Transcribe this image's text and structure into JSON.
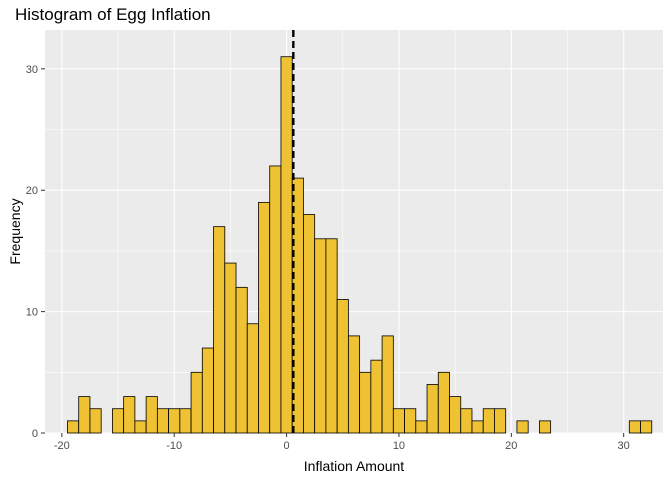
{
  "chart_data": {
    "type": "bar",
    "title": "Histogram of Egg Inflation",
    "xlabel": "Inflation Amount",
    "ylabel": "Frequency",
    "xlim": [
      -21.5,
      33.5
    ],
    "ylim": [
      0,
      33.2
    ],
    "xticks": [
      -20,
      -10,
      0,
      10,
      20,
      30
    ],
    "yticks": [
      0,
      10,
      20,
      30
    ],
    "bin_width": 1,
    "bins": [
      {
        "x": -19,
        "count": 1
      },
      {
        "x": -18,
        "count": 3
      },
      {
        "x": -17,
        "count": 2
      },
      {
        "x": -16,
        "count": 0
      },
      {
        "x": -15,
        "count": 2
      },
      {
        "x": -14,
        "count": 3
      },
      {
        "x": -13,
        "count": 1
      },
      {
        "x": -12,
        "count": 3
      },
      {
        "x": -11,
        "count": 2
      },
      {
        "x": -10,
        "count": 2
      },
      {
        "x": -9,
        "count": 2
      },
      {
        "x": -8,
        "count": 5
      },
      {
        "x": -7,
        "count": 7
      },
      {
        "x": -6,
        "count": 17
      },
      {
        "x": -5,
        "count": 14
      },
      {
        "x": -4,
        "count": 12
      },
      {
        "x": -3,
        "count": 9
      },
      {
        "x": -2,
        "count": 19
      },
      {
        "x": -1,
        "count": 22
      },
      {
        "x": 0,
        "count": 31
      },
      {
        "x": 1,
        "count": 21
      },
      {
        "x": 2,
        "count": 18
      },
      {
        "x": 3,
        "count": 16
      },
      {
        "x": 4,
        "count": 16
      },
      {
        "x": 5,
        "count": 11
      },
      {
        "x": 6,
        "count": 8
      },
      {
        "x": 7,
        "count": 5
      },
      {
        "x": 8,
        "count": 6
      },
      {
        "x": 9,
        "count": 8
      },
      {
        "x": 10,
        "count": 2
      },
      {
        "x": 11,
        "count": 2
      },
      {
        "x": 12,
        "count": 1
      },
      {
        "x": 13,
        "count": 4
      },
      {
        "x": 14,
        "count": 5
      },
      {
        "x": 15,
        "count": 3
      },
      {
        "x": 16,
        "count": 2
      },
      {
        "x": 17,
        "count": 1
      },
      {
        "x": 18,
        "count": 2
      },
      {
        "x": 19,
        "count": 2
      },
      {
        "x": 20,
        "count": 0
      },
      {
        "x": 21,
        "count": 1
      },
      {
        "x": 22,
        "count": 0
      },
      {
        "x": 23,
        "count": 1
      },
      {
        "x": 24,
        "count": 0
      },
      {
        "x": 25,
        "count": 0
      },
      {
        "x": 26,
        "count": 0
      },
      {
        "x": 27,
        "count": 0
      },
      {
        "x": 28,
        "count": 0
      },
      {
        "x": 29,
        "count": 0
      },
      {
        "x": 30,
        "count": 0
      },
      {
        "x": 31,
        "count": 1
      },
      {
        "x": 32,
        "count": 1
      }
    ],
    "mean_line_x": 0.6,
    "grid": true,
    "legend": "none",
    "colors": {
      "bar_fill": "#EEC233",
      "bar_stroke": "#000000",
      "panel_background": "#EBEBEB",
      "grid": "#ffffff",
      "mean_line": "#000000"
    }
  }
}
